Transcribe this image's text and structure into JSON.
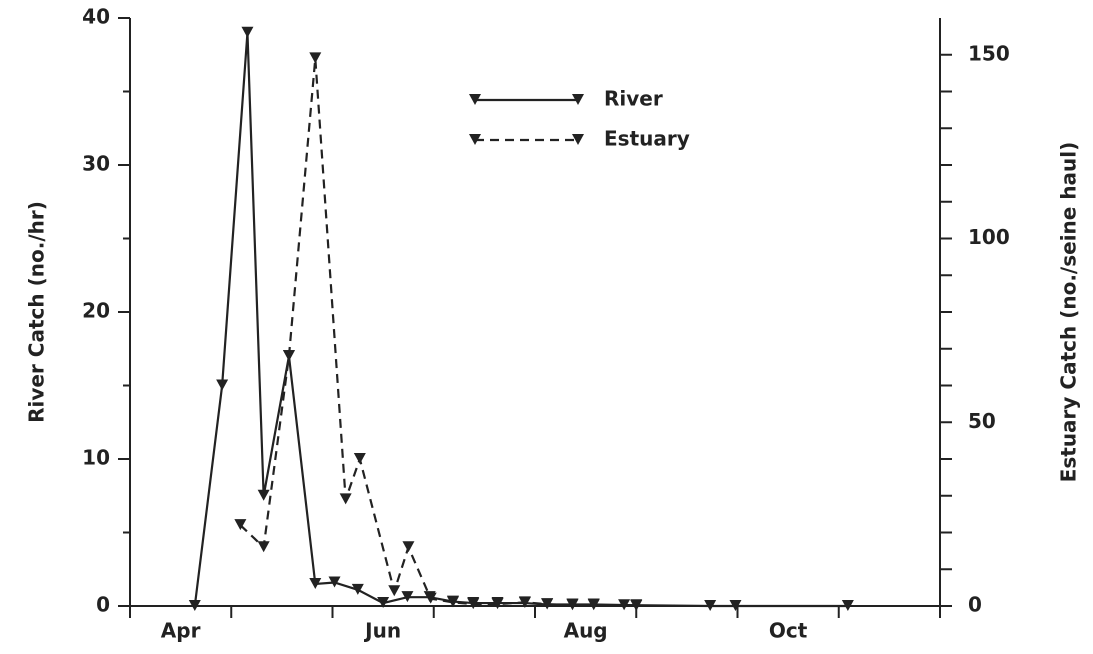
{
  "chart_data": {
    "type": "line",
    "ylabel": "River Catch (no./hr)",
    "y2label": "Estuary Catch (no./seine haul)",
    "xlim": [
      4,
      12
    ],
    "xticks": [
      {
        "value": 4.5,
        "label": "Apr"
      },
      {
        "value": 6.5,
        "label": "Jun"
      },
      {
        "value": 8.5,
        "label": "Aug"
      },
      {
        "value": 10.5,
        "label": "Oct"
      }
    ],
    "x_tick_marks": [
      4,
      5,
      6,
      7,
      8,
      9,
      10,
      11,
      12
    ],
    "ylim": [
      0,
      40
    ],
    "yticks": [
      0,
      10,
      20,
      30,
      40
    ],
    "y_minor_ticks": [
      5,
      15,
      25,
      35
    ],
    "y2lim": [
      0,
      160
    ],
    "y2ticks": [
      0,
      50,
      100,
      150
    ],
    "y2_minor_ticks": [
      10,
      20,
      30,
      40,
      60,
      70,
      80,
      90,
      110,
      120,
      130,
      140
    ],
    "series": [
      {
        "name": "River",
        "color": "#222222",
        "dash": "solid",
        "x": [
          4.64,
          4.91,
          5.16,
          5.32,
          5.57,
          5.83,
          6.02,
          6.25,
          6.5,
          6.74,
          6.96,
          7.19,
          7.39,
          7.63,
          7.9,
          8.12,
          8.37,
          8.58,
          9.0,
          9.73,
          9.98,
          11.09
        ],
        "values": [
          0,
          15,
          39,
          7.5,
          17,
          1.5,
          1.6,
          1.1,
          0.2,
          0.6,
          0.6,
          0.3,
          0.2,
          0.2,
          0.2,
          0.1,
          0.1,
          0.1,
          0.05,
          0,
          0,
          0
        ]
      },
      {
        "name": "Estuary",
        "color": "#222222",
        "dash": "dashed",
        "axis": "y2",
        "x": [
          5.09,
          5.32,
          5.57,
          5.83,
          6.13,
          6.27,
          6.61,
          6.75,
          6.97,
          7.19,
          7.39,
          7.63,
          7.9,
          8.12,
          8.37,
          8.58,
          8.88,
          9.0
        ],
        "values": [
          22,
          16,
          68,
          149,
          29,
          40,
          4,
          16,
          2,
          1,
          0.5,
          0.5,
          1,
          0.5,
          0.2,
          0.2,
          0.2,
          0
        ]
      }
    ]
  }
}
